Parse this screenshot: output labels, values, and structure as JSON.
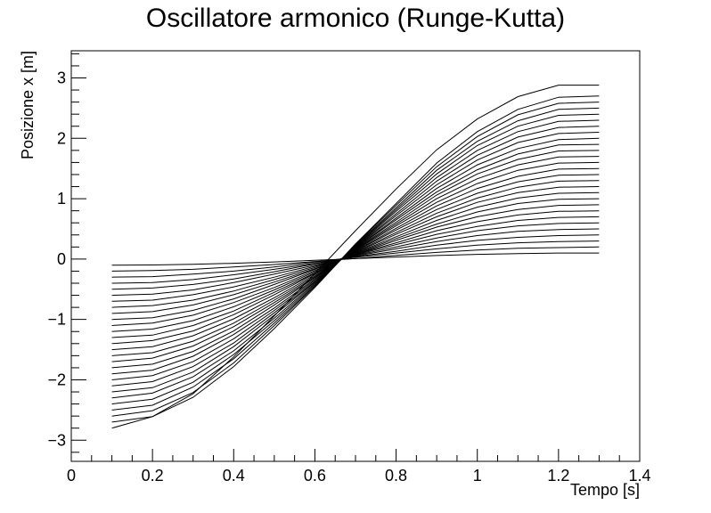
{
  "chart_data": {
    "type": "line",
    "title": "Oscillatore armonico (Runge-Kutta)",
    "xlabel": "Tempo [s]",
    "ylabel": "Posizione x [m]",
    "xlim": [
      0,
      1.4
    ],
    "ylim": [
      -3.35,
      3.45
    ],
    "xticks": [
      0,
      0.2,
      0.4,
      0.6,
      0.8,
      1,
      1.2,
      1.4
    ],
    "xtick_labels": [
      "0",
      "0.2",
      "0.4",
      "0.6",
      "0.8",
      "1",
      "1.2",
      "1.4"
    ],
    "yticks": [
      -3,
      -2,
      -1,
      0,
      1,
      2,
      3
    ],
    "ytick_labels": [
      "−3",
      "−2",
      "−1",
      "0",
      "1",
      "2",
      "3"
    ],
    "grid": false,
    "line_color": "#000000",
    "x": [
      0.1,
      0.2,
      0.3,
      0.4,
      0.5,
      0.6,
      0.7,
      0.8,
      0.9,
      1.0,
      1.1,
      1.2,
      1.3
    ],
    "series": [
      {
        "values": [
          -0.1,
          -0.097,
          -0.087,
          -0.07,
          -0.047,
          -0.021,
          0.007,
          0.034,
          0.059,
          0.078,
          0.092,
          0.1,
          0.1
        ]
      },
      {
        "values": [
          -0.2,
          -0.19,
          -0.17,
          -0.13,
          -0.09,
          -0.04,
          0.01,
          0.06,
          0.11,
          0.15,
          0.18,
          0.19,
          0.2
        ]
      },
      {
        "values": [
          -0.3,
          -0.29,
          -0.25,
          -0.2,
          -0.13,
          -0.05,
          0.03,
          0.1,
          0.17,
          0.23,
          0.27,
          0.29,
          0.3
        ]
      },
      {
        "values": [
          -0.4,
          -0.39,
          -0.34,
          -0.26,
          -0.17,
          -0.07,
          0.04,
          0.13,
          0.23,
          0.31,
          0.36,
          0.39,
          0.4
        ]
      },
      {
        "values": [
          -0.5,
          -0.48,
          -0.42,
          -0.33,
          -0.21,
          -0.08,
          0.05,
          0.17,
          0.29,
          0.39,
          0.46,
          0.49,
          0.5
        ]
      },
      {
        "values": [
          -0.6,
          -0.58,
          -0.51,
          -0.39,
          -0.25,
          -0.1,
          0.06,
          0.2,
          0.35,
          0.47,
          0.55,
          0.59,
          0.6
        ]
      },
      {
        "values": [
          -0.7,
          -0.68,
          -0.59,
          -0.46,
          -0.3,
          -0.12,
          0.07,
          0.24,
          0.41,
          0.54,
          0.64,
          0.69,
          0.7
        ]
      },
      {
        "values": [
          -0.8,
          -0.77,
          -0.68,
          -0.53,
          -0.34,
          -0.14,
          0.08,
          0.27,
          0.47,
          0.62,
          0.73,
          0.79,
          0.8
        ]
      },
      {
        "values": [
          -0.9,
          -0.87,
          -0.76,
          -0.59,
          -0.38,
          -0.16,
          0.08,
          0.31,
          0.53,
          0.7,
          0.82,
          0.89,
          0.9
        ]
      },
      {
        "values": [
          -1.0,
          -0.97,
          -0.85,
          -0.66,
          -0.42,
          -0.17,
          0.09,
          0.34,
          0.58,
          0.78,
          0.92,
          0.99,
          1.0
        ]
      },
      {
        "values": [
          -1.1,
          -1.06,
          -0.93,
          -0.72,
          -0.47,
          -0.19,
          0.1,
          0.37,
          0.64,
          0.86,
          1.01,
          1.09,
          1.1
        ]
      },
      {
        "values": [
          -1.2,
          -1.16,
          -1.02,
          -0.79,
          -0.51,
          -0.21,
          0.11,
          0.41,
          0.7,
          0.94,
          1.1,
          1.19,
          1.2
        ]
      },
      {
        "values": [
          -1.3,
          -1.26,
          -1.1,
          -0.86,
          -0.55,
          -0.23,
          0.12,
          0.44,
          0.76,
          1.01,
          1.19,
          1.29,
          1.3
        ]
      },
      {
        "values": [
          -1.4,
          -1.35,
          -1.19,
          -0.92,
          -0.59,
          -0.24,
          0.13,
          0.48,
          0.82,
          1.09,
          1.28,
          1.39,
          1.4
        ]
      },
      {
        "values": [
          -1.5,
          -1.45,
          -1.27,
          -0.99,
          -0.64,
          -0.26,
          0.14,
          0.51,
          0.88,
          1.17,
          1.37,
          1.49,
          1.5
        ]
      },
      {
        "values": [
          -1.6,
          -1.55,
          -1.36,
          -1.06,
          -0.68,
          -0.28,
          0.15,
          0.55,
          0.94,
          1.25,
          1.47,
          1.59,
          1.6
        ]
      },
      {
        "values": [
          -1.7,
          -1.64,
          -1.44,
          -1.12,
          -0.72,
          -0.3,
          0.16,
          0.58,
          1.0,
          1.33,
          1.56,
          1.69,
          1.7
        ]
      },
      {
        "values": [
          -1.8,
          -1.74,
          -1.53,
          -1.19,
          -0.76,
          -0.31,
          0.17,
          0.61,
          1.06,
          1.41,
          1.65,
          1.79,
          1.8
        ]
      },
      {
        "values": [
          -1.9,
          -1.84,
          -1.61,
          -1.25,
          -0.81,
          -0.33,
          0.18,
          0.65,
          1.11,
          1.48,
          1.74,
          1.89,
          1.9
        ]
      },
      {
        "values": [
          -2.0,
          -1.93,
          -1.7,
          -1.32,
          -0.85,
          -0.35,
          0.18,
          0.68,
          1.17,
          1.56,
          1.83,
          1.98,
          2.0
        ]
      },
      {
        "values": [
          -2.1,
          -2.03,
          -1.78,
          -1.39,
          -0.89,
          -0.37,
          0.19,
          0.72,
          1.23,
          1.64,
          1.93,
          2.08,
          2.1
        ]
      },
      {
        "values": [
          -2.2,
          -2.13,
          -1.87,
          -1.45,
          -0.93,
          -0.38,
          0.2,
          0.75,
          1.29,
          1.72,
          2.02,
          2.18,
          2.2
        ]
      },
      {
        "values": [
          -2.3,
          -2.22,
          -1.95,
          -1.52,
          -0.98,
          -0.4,
          0.21,
          0.79,
          1.35,
          1.8,
          2.11,
          2.28,
          2.3
        ]
      },
      {
        "values": [
          -2.4,
          -2.32,
          -2.04,
          -1.58,
          -1.02,
          -0.42,
          0.22,
          0.82,
          1.41,
          1.88,
          2.2,
          2.38,
          2.4
        ]
      },
      {
        "values": [
          -2.5,
          -2.42,
          -2.12,
          -1.65,
          -1.06,
          -0.44,
          0.23,
          0.85,
          1.47,
          1.95,
          2.29,
          2.48,
          2.5
        ]
      },
      {
        "values": [
          -2.6,
          -2.51,
          -2.21,
          -1.72,
          -1.1,
          -0.45,
          0.24,
          0.89,
          1.53,
          2.03,
          2.39,
          2.58,
          2.6
        ]
      },
      {
        "values": [
          -2.7,
          -2.61,
          -2.29,
          -1.78,
          -1.15,
          -0.47,
          0.25,
          0.92,
          1.59,
          2.11,
          2.48,
          2.68,
          2.7
        ]
      },
      {
        "values": [
          -2.8,
          -2.61,
          -2.23,
          -1.62,
          -0.94,
          -0.24,
          0.47,
          1.16,
          1.81,
          2.32,
          2.69,
          2.88,
          2.88
        ]
      }
    ]
  }
}
